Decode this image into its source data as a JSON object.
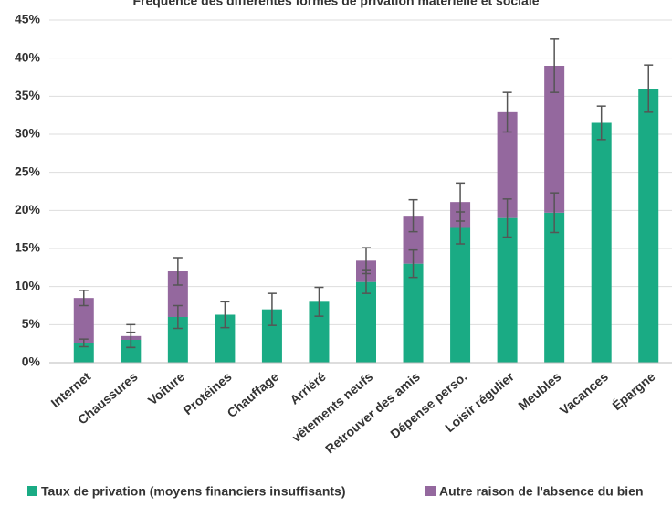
{
  "chart_data": {
    "type": "bar",
    "stacked": true,
    "title": "Fréquence des différentes formes de privation matérielle et sociale",
    "categories": [
      "Internet",
      "Chaussures",
      "Voiture",
      "Protéines",
      "Chauffage",
      "Arriéré",
      "vêtements neufs",
      "Retrouver des amis",
      "Dépense perso.",
      "Loisir régulier",
      "Meubles",
      "Vacances",
      "Épargne"
    ],
    "series": [
      {
        "name": "Taux de privation (moyens financiers insuffisants)",
        "color": "#1aab84",
        "values": [
          2.6,
          3.0,
          6.0,
          6.3,
          7.0,
          8.0,
          10.6,
          13.0,
          17.7,
          19.0,
          19.7,
          31.5,
          36.0
        ],
        "errors": [
          0.5,
          1.0,
          1.5,
          1.7,
          2.1,
          1.9,
          1.5,
          1.8,
          2.1,
          2.5,
          2.6,
          2.2,
          3.1
        ]
      },
      {
        "name": "Autre raison de l'absence du bien",
        "color": "#94689e",
        "values": [
          5.9,
          0.5,
          6.0,
          null,
          null,
          null,
          2.8,
          6.3,
          3.4,
          13.9,
          19.3,
          null,
          null
        ],
        "errors": [
          1.0,
          1.5,
          1.8,
          null,
          null,
          null,
          1.7,
          2.1,
          2.5,
          2.6,
          3.5,
          null,
          null
        ]
      }
    ],
    "ylim": [
      0,
      45
    ],
    "yticks": [
      {
        "value": 0,
        "label": "0%"
      },
      {
        "value": 5,
        "label": "5%"
      },
      {
        "value": 10,
        "label": "10%"
      },
      {
        "value": 15,
        "label": "15%"
      },
      {
        "value": 20,
        "label": "20%"
      },
      {
        "value": 25,
        "label": "25%"
      },
      {
        "value": 30,
        "label": "30%"
      },
      {
        "value": 35,
        "label": "35%"
      },
      {
        "value": 40,
        "label": "40%"
      },
      {
        "value": 45,
        "label": "45%"
      }
    ],
    "grid": true,
    "legend": "bottom"
  }
}
